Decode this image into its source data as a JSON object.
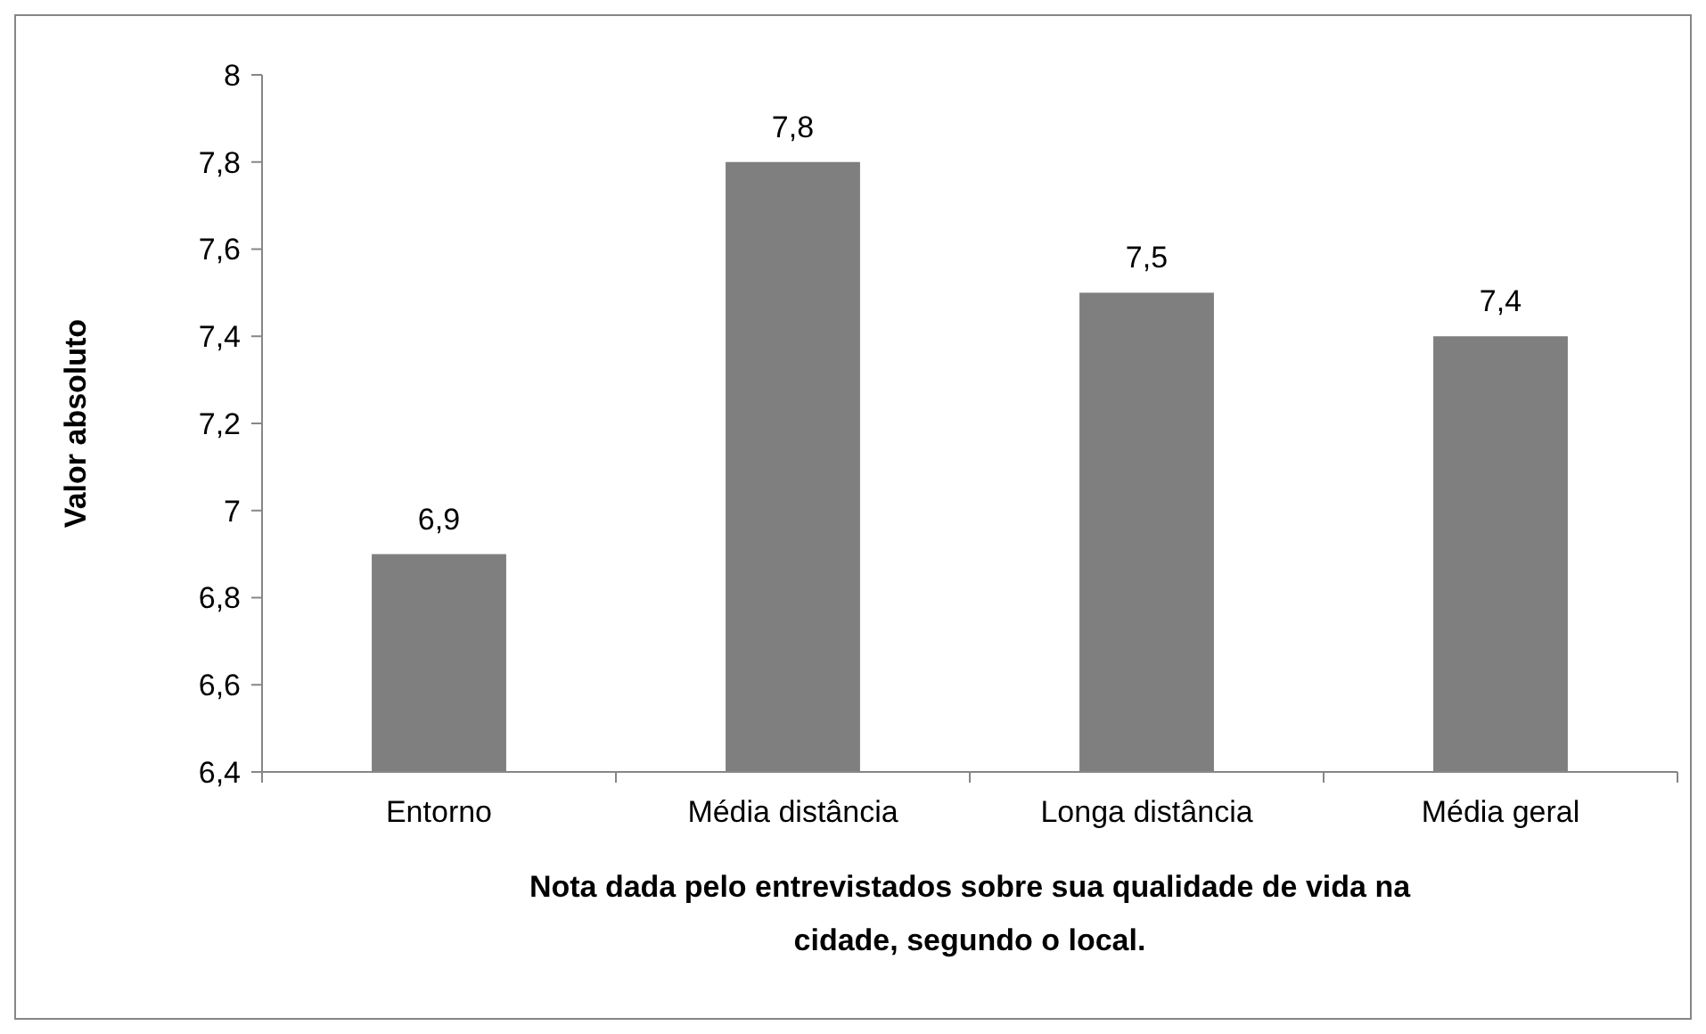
{
  "chart_data": {
    "type": "bar",
    "ylabel": "Valor absoluto",
    "xlabel": "Nota dada pelo entrevistados sobre sua qualidade de vida na cidade, segundo o local.",
    "categories": [
      "Entorno",
      "Média distância",
      "Longa distância",
      "Média geral"
    ],
    "values": [
      6.9,
      7.8,
      7.5,
      7.4
    ],
    "value_labels": [
      "6,9",
      "7,8",
      "7,5",
      "7,4"
    ],
    "color": "#7f7f7f",
    "ylim": [
      6.4,
      8
    ],
    "yticks": [
      {
        "value": 6.4,
        "label": "6,4"
      },
      {
        "value": 6.6,
        "label": "6,6"
      },
      {
        "value": 6.8,
        "label": "6,8"
      },
      7,
      {
        "value": 7.2,
        "label": "7,2"
      },
      {
        "value": 7.4,
        "label": "7,4"
      },
      {
        "value": 7.6,
        "label": "7,6"
      },
      {
        "value": 7.8,
        "label": "7,8"
      },
      8
    ],
    "grid": false
  }
}
